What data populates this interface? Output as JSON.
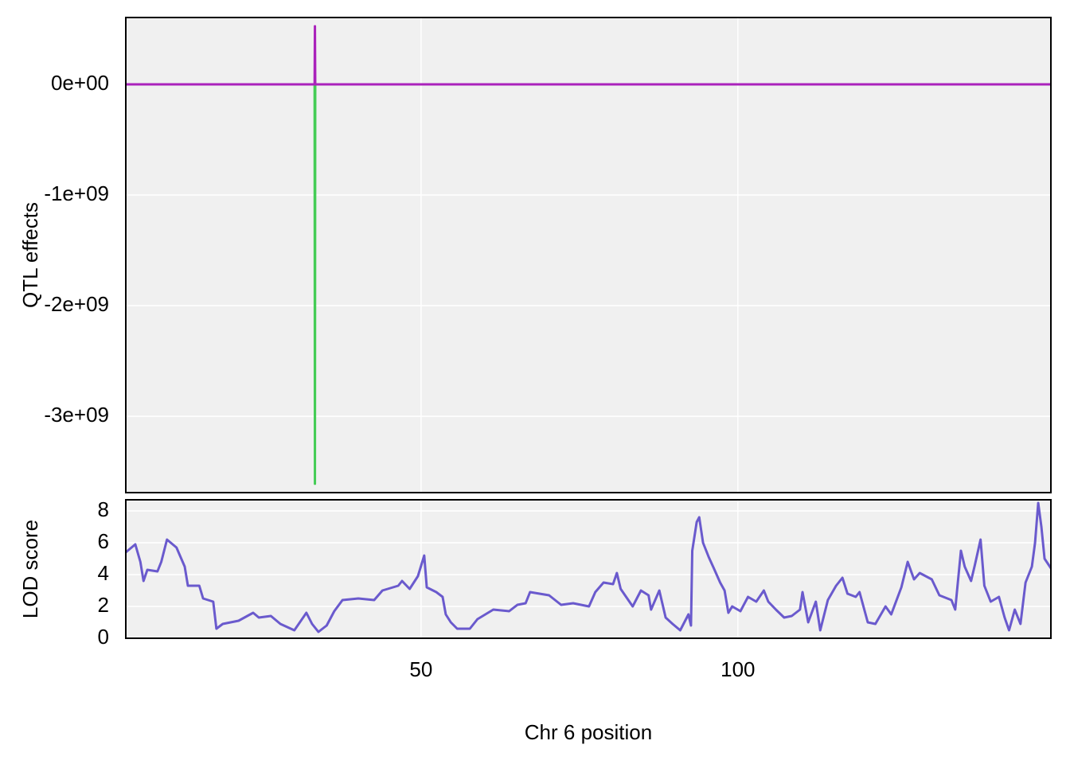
{
  "chart_data": [
    {
      "type": "line",
      "ylabel": "QTL effects",
      "xlim": [
        3.4,
        149.4
      ],
      "ylim": [
        -3690000000,
        604000000
      ],
      "yticks": [
        {
          "value": 0,
          "label": "0e+00"
        },
        {
          "value": -1000000000,
          "label": "-1e+09"
        },
        {
          "value": -2000000000,
          "label": "-2e+09"
        },
        {
          "value": -3000000000,
          "label": "-3e+09"
        }
      ],
      "grid": true,
      "series": [
        {
          "color": "#44cc55",
          "x": [
            33.2,
            33.25,
            33.3
          ],
          "values": [
            0,
            -3610000000,
            0
          ]
        },
        {
          "color": "#aa22bb",
          "x": [
            3.4,
            33.2,
            33.25,
            33.3,
            149.4
          ],
          "values": [
            0,
            0,
            525000000,
            0,
            0
          ]
        }
      ]
    },
    {
      "type": "line",
      "ylabel": "LOD score",
      "xlabel": "Chr 6 position",
      "xlim": [
        3.4,
        149.4
      ],
      "ylim": [
        0,
        8.7
      ],
      "xticks": [
        50,
        100
      ],
      "yticks": [
        0,
        2,
        4,
        6,
        8
      ],
      "grid": true,
      "series": [
        {
          "color": "#6a5acd",
          "x": [
            3.4,
            4.9,
            5.7,
            6.2,
            6.8,
            8.4,
            9.0,
            9.9,
            11.4,
            12.7,
            13.2,
            15.0,
            15.6,
            17.2,
            17.7,
            18.7,
            21.2,
            23.5,
            24.4,
            26.3,
            27.8,
            30.0,
            31.9,
            32.8,
            33.8,
            35.1,
            36.3,
            37.6,
            40.1,
            42.6,
            43.9,
            46.4,
            47.0,
            48.2,
            49.5,
            50.5,
            50.9,
            52.4,
            53.4,
            53.9,
            54.7,
            55.7,
            57.7,
            58.9,
            61.4,
            63.9,
            65.2,
            66.5,
            67.2,
            70.2,
            72.1,
            74.0,
            76.5,
            77.5,
            78.8,
            80.3,
            80.9,
            81.5,
            83.4,
            84.7,
            85.9,
            86.3,
            87.6,
            88.6,
            89.7,
            90.9,
            92.2,
            92.6,
            92.8,
            93.5,
            93.9,
            94.5,
            95.4,
            96.2,
            97.2,
            97.9,
            98.5,
            99.1,
            100.4,
            101.6,
            102.9,
            104.1,
            104.8,
            106.0,
            107.3,
            108.5,
            109.8,
            110.2,
            111.1,
            112.3,
            113.0,
            114.2,
            115.5,
            116.5,
            117.3,
            118.6,
            119.2,
            120.5,
            121.7,
            123.3,
            124.2,
            125.8,
            126.8,
            127.8,
            128.7,
            130.6,
            131.8,
            133.7,
            134.3,
            135.2,
            135.8,
            136.8,
            137.4,
            138.3,
            138.9,
            139.9,
            141.2,
            142.1,
            142.8,
            143.7,
            144.6,
            145.4,
            146.4,
            146.9,
            147.4,
            147.9,
            148.4,
            149.4
          ],
          "values": [
            5.4,
            5.9,
            4.8,
            3.6,
            4.3,
            4.2,
            4.8,
            6.2,
            5.7,
            4.5,
            3.3,
            3.3,
            2.5,
            2.3,
            0.6,
            0.9,
            1.1,
            1.6,
            1.3,
            1.4,
            0.9,
            0.5,
            1.6,
            0.9,
            0.4,
            0.8,
            1.7,
            2.4,
            2.5,
            2.4,
            3.0,
            3.3,
            3.6,
            3.1,
            3.9,
            5.2,
            3.2,
            2.9,
            2.6,
            1.5,
            1.0,
            0.6,
            0.6,
            1.2,
            1.8,
            1.7,
            2.1,
            2.2,
            2.9,
            2.7,
            2.1,
            2.2,
            2.0,
            2.9,
            3.5,
            3.4,
            4.1,
            3.1,
            2.0,
            3.0,
            2.7,
            1.8,
            3.0,
            1.3,
            0.9,
            0.5,
            1.5,
            0.8,
            5.5,
            7.3,
            7.6,
            6.0,
            5.1,
            4.4,
            3.5,
            3.0,
            1.6,
            2.0,
            1.7,
            2.6,
            2.3,
            3.0,
            2.3,
            1.8,
            1.3,
            1.4,
            1.8,
            2.9,
            1.0,
            2.3,
            0.5,
            2.4,
            3.3,
            3.8,
            2.8,
            2.6,
            2.9,
            1.0,
            0.9,
            2.0,
            1.5,
            3.2,
            4.8,
            3.7,
            4.1,
            3.7,
            2.7,
            2.4,
            1.8,
            5.5,
            4.5,
            3.6,
            4.6,
            6.2,
            3.3,
            2.3,
            2.6,
            1.3,
            0.5,
            1.8,
            0.9,
            3.5,
            4.5,
            6.0,
            8.5,
            7.0,
            5.0,
            4.4
          ]
        }
      ]
    }
  ]
}
